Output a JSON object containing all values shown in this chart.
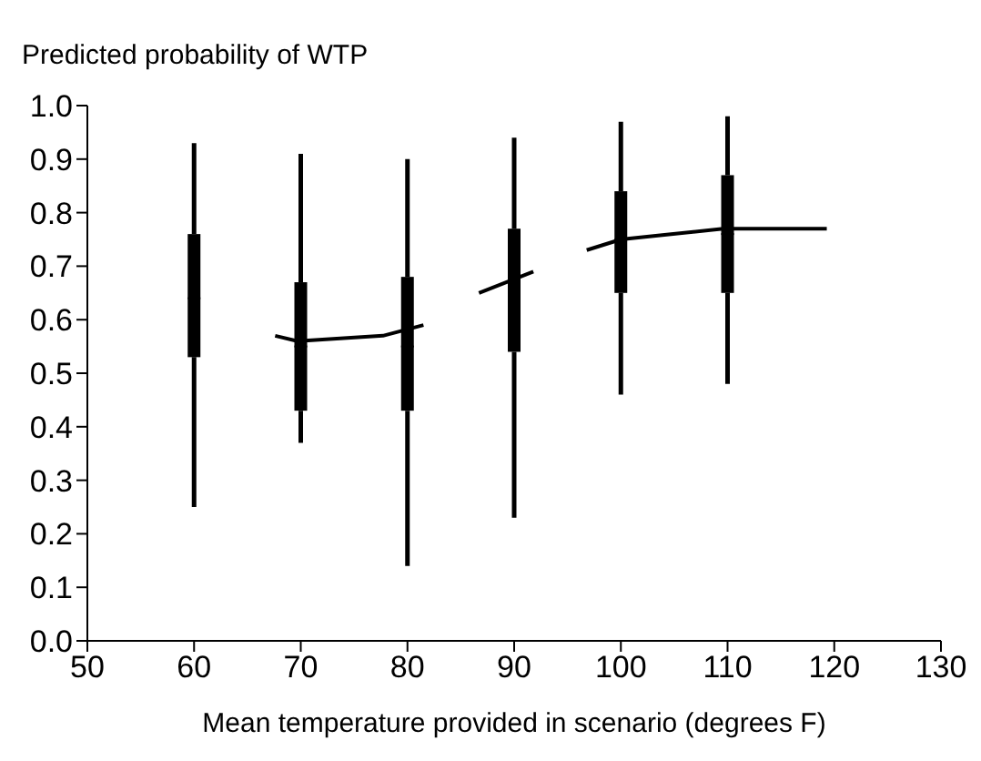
{
  "chart_data": {
    "type": "box",
    "ylabel": "Predicted probability of WTP",
    "xlabel": "Mean temperature provided in scenario (degrees F)",
    "xlim": [
      50,
      130
    ],
    "xticks": [
      50,
      60,
      70,
      80,
      90,
      100,
      110,
      120,
      130
    ],
    "ylim": [
      0,
      1
    ],
    "yticks": [
      {
        "value": 0,
        "label": "0.0"
      },
      {
        "value": 0.1,
        "label": "0.1"
      },
      {
        "value": 0.2,
        "label": "0.2"
      },
      {
        "value": 0.3,
        "label": "0.3"
      },
      {
        "value": 0.4,
        "label": "0.4"
      },
      {
        "value": 0.5,
        "label": "0.5"
      },
      {
        "value": 0.6,
        "label": "0.6"
      },
      {
        "value": 0.7,
        "label": "0.7"
      },
      {
        "value": 0.8,
        "label": "0.8"
      },
      {
        "value": 0.9,
        "label": "0.9"
      },
      {
        "value": 1,
        "label": "1.0"
      }
    ],
    "grid": false,
    "series": [
      {
        "color": "#000000",
        "x": [
          60,
          70,
          80,
          90,
          100,
          110
        ],
        "boxes": [
          {
            "low": 0.25,
            "q1": 0.53,
            "median": 0.64,
            "q3": 0.76,
            "high": 0.93
          },
          {
            "low": 0.37,
            "q1": 0.43,
            "median": 0.55,
            "q3": 0.67,
            "high": 0.91
          },
          {
            "low": 0.14,
            "q1": 0.43,
            "median": 0.55,
            "q3": 0.68,
            "high": 0.9
          },
          {
            "low": 0.23,
            "q1": 0.54,
            "median": 0.65,
            "q3": 0.77,
            "high": 0.94
          },
          {
            "low": 0.46,
            "q1": 0.65,
            "median": 0.75,
            "q3": 0.84,
            "high": 0.97
          },
          {
            "low": 0.48,
            "q1": 0.65,
            "median": 0.76,
            "q3": 0.87,
            "high": 0.98
          }
        ]
      },
      {
        "type": "line",
        "color": "#000000",
        "x": [
          67.6,
          69.7,
          77.7,
          81.5
        ],
        "values": [
          0.57,
          0.56,
          0.57,
          0.59
        ]
      },
      {
        "type": "line",
        "color": "#000000",
        "x": [
          86.7,
          91.8
        ],
        "values": [
          0.65,
          0.69
        ]
      },
      {
        "type": "line",
        "color": "#000000",
        "x": [
          96.8,
          100,
          109.6,
          119.3
        ],
        "values": [
          0.73,
          0.75,
          0.77,
          0.77
        ]
      }
    ]
  }
}
